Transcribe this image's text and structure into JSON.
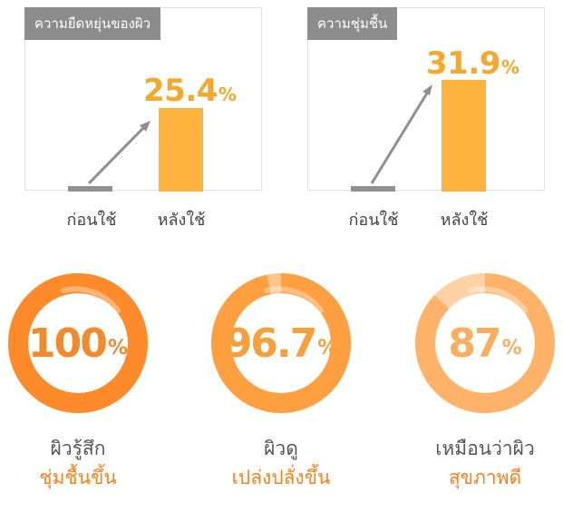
{
  "chart_data": [
    {
      "type": "bar",
      "title": "ความยืดหยุ่นของผิว",
      "categories": [
        "ก่อนใช้",
        "หลังใช้"
      ],
      "values": [
        0,
        25.4
      ],
      "value_label": "25.4",
      "unit": "%",
      "colors": {
        "before": "#909090",
        "after": "#fdb33c",
        "label": "#f7a82b"
      }
    },
    {
      "type": "bar",
      "title": "ความชุ่มชื้น",
      "categories": [
        "ก่อนใช้",
        "หลังใช้"
      ],
      "values": [
        0,
        31.9
      ],
      "value_label": "31.9",
      "unit": "%",
      "colors": {
        "before": "#909090",
        "after": "#fdb33c",
        "label": "#f7a82b"
      }
    },
    {
      "type": "pie",
      "rings": [
        {
          "value": 100,
          "value_label": "100",
          "unit": "%",
          "line1": "ผิวรู้สึก",
          "line2": "ชุ่มชื้นขึ้น",
          "color": "#ff8a2a",
          "text_color": "#f08a2c"
        },
        {
          "value": 96.7,
          "value_label": "96.7",
          "unit": "%",
          "line1": "ผิวดู",
          "line2": "เปล่งปลั่งขึ้น",
          "color": "#ff9f40",
          "text_color": "#f6a03c"
        },
        {
          "value": 87,
          "value_label": "87",
          "unit": "%",
          "line1": "เหมือนว่าผิว",
          "line2": "สุขภาพดี",
          "color": "#ffb268",
          "text_color": "#f9ad5e"
        }
      ]
    }
  ]
}
